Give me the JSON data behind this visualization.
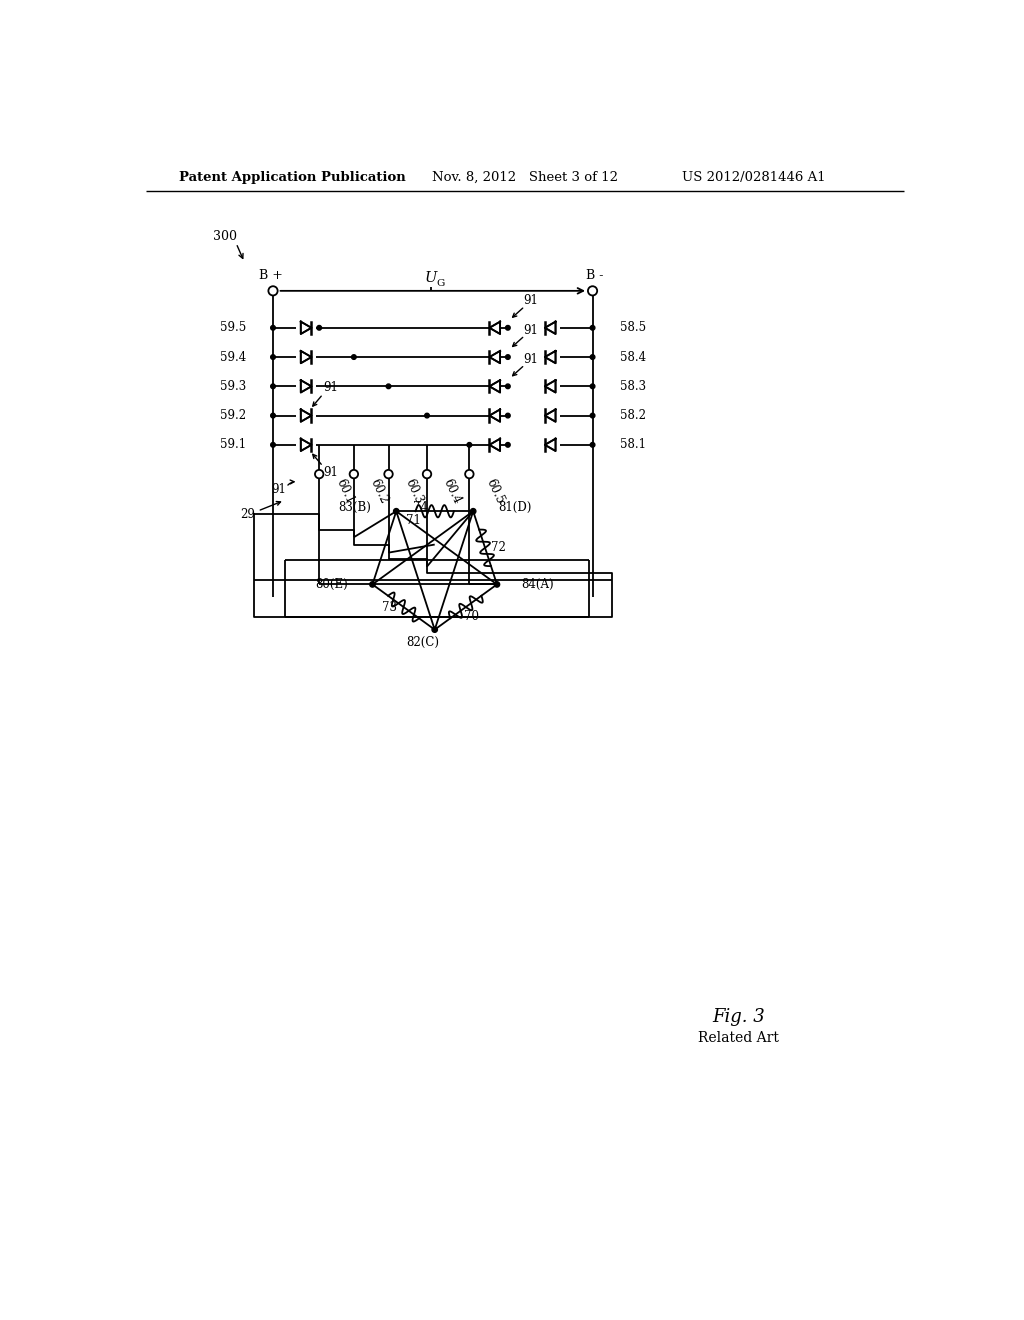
{
  "bg_color": "#ffffff",
  "header_left": "Patent Application Publication",
  "header_mid": "Nov. 8, 2012   Sheet 3 of 12",
  "header_right": "US 2012/0281446 A1",
  "fig_label": "Fig. 3",
  "fig_sublabel": "Related Art"
}
